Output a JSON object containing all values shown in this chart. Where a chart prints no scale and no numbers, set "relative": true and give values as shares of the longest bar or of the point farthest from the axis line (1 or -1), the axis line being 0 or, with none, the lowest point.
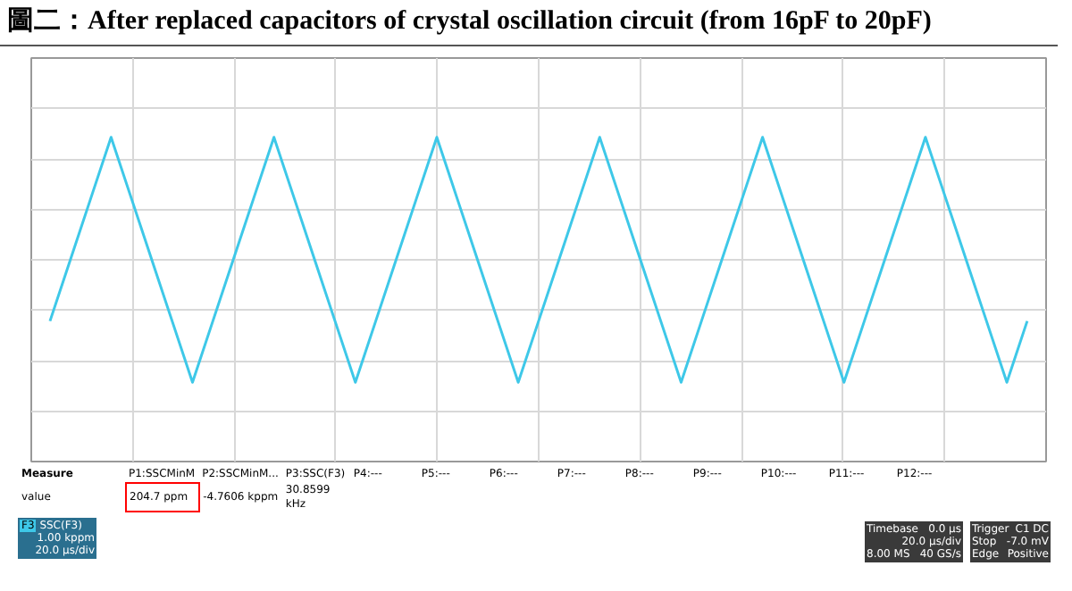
{
  "chart_data": {
    "type": "line",
    "title": "圖二：After replaced capacitors of crystal oscillation circuit (from 16pF to 20pF)",
    "relative": true,
    "categories": [
      null,
      null,
      null,
      null,
      null,
      null,
      null,
      null,
      null,
      null,
      null,
      null,
      null,
      null,
      null,
      null,
      null,
      null,
      null,
      null,
      null,
      null,
      null,
      null,
      null,
      null,
      null,
      null,
      null,
      null,
      null,
      null,
      null,
      null,
      null,
      null,
      null,
      null,
      null,
      null,
      null,
      null,
      null,
      null,
      null,
      null,
      null,
      null,
      null
    ],
    "series": [
      {
        "color": "#3ec8e8",
        "values": [
          -0.5,
          0,
          0.5,
          1,
          0.5,
          0,
          -0.5,
          -1,
          -0.5,
          0,
          0.5,
          1,
          0.5,
          0,
          -0.5,
          -1,
          -0.5,
          0,
          0.5,
          1,
          0.5,
          0,
          -0.5,
          -1,
          -0.5,
          0,
          0.5,
          1,
          0.5,
          0,
          -0.5,
          -1,
          -0.5,
          0,
          0.5,
          1,
          0.5,
          0,
          -0.5,
          -1,
          -0.5,
          0,
          0.5,
          1,
          0.5,
          0,
          -0.5,
          -1,
          -0.5
        ]
      }
    ],
    "tick_labels": false,
    "grid": true,
    "line_style": "solid",
    "annotations": [
      "Measure",
      "P1:SSCMinM",
      "P2:SSCMinM...",
      "P3:SSC(F3)",
      "P4:---",
      "P5:---",
      "P6:---",
      "P7:---",
      "P8:---",
      "P9:---",
      "P10:---",
      "P11:---",
      "P12:---",
      "value",
      "204.7 ppm",
      "-4.7606 kppm",
      "30.8599 kHz",
      "F3",
      "SSC(F3)",
      "1.00 kppm",
      "20.0 µs/div",
      "Timebase",
      "0.0 µs",
      "20.0 µs/div",
      "8.00 MS",
      "40 GS/s",
      "Trigger",
      "C1 DC",
      "Stop",
      "-7.0 mV",
      "Edge",
      "Positive"
    ]
  }
}
